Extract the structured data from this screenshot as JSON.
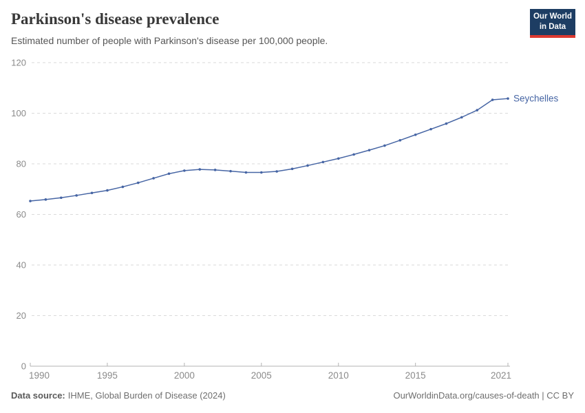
{
  "header": {
    "title": "Parkinson's disease prevalence",
    "subtitle": "Estimated number of people with Parkinson's disease per 100,000 people.",
    "logo": {
      "line1": "Our World",
      "line2": "in Data",
      "bg_color": "#1d3d63",
      "accent_color": "#dc3930"
    }
  },
  "chart_data": {
    "type": "line",
    "title": "Parkinson's disease prevalence",
    "xlabel": "",
    "ylabel": "Estimated number of people with Parkinson's disease per 100,000 people",
    "x": [
      1990,
      1991,
      1992,
      1993,
      1994,
      1995,
      1996,
      1997,
      1998,
      1999,
      2000,
      2001,
      2002,
      2003,
      2004,
      2005,
      2006,
      2007,
      2008,
      2009,
      2010,
      2011,
      2012,
      2013,
      2014,
      2015,
      2016,
      2017,
      2018,
      2019,
      2020,
      2021
    ],
    "series": [
      {
        "name": "Seychelles",
        "color": "#4665a4",
        "values": [
          65.3,
          65.9,
          66.6,
          67.5,
          68.5,
          69.5,
          70.9,
          72.5,
          74.3,
          76.1,
          77.3,
          77.8,
          77.6,
          77.1,
          76.6,
          76.6,
          77.0,
          78.0,
          79.3,
          80.7,
          82.1,
          83.7,
          85.4,
          87.2,
          89.3,
          91.5,
          93.7,
          95.9,
          98.4,
          101.2,
          105.3,
          105.8
        ]
      }
    ],
    "xlim": [
      1990,
      2021
    ],
    "ylim": [
      0,
      120
    ],
    "yticks": [
      0,
      20,
      40,
      60,
      80,
      100,
      120
    ],
    "xticks": [
      1990,
      1995,
      2000,
      2005,
      2010,
      2015,
      2021
    ],
    "grid": "horizontal-dashed",
    "grid_color": "#dadada",
    "axis_color": "#b3b3b3",
    "tick_label_color": "#8a8a8a",
    "legend_position": "end-of-line"
  },
  "footer": {
    "source_label": "Data source:",
    "source_text": "IHME, Global Burden of Disease (2024)",
    "credit": "OurWorldinData.org/causes-of-death | CC BY"
  }
}
